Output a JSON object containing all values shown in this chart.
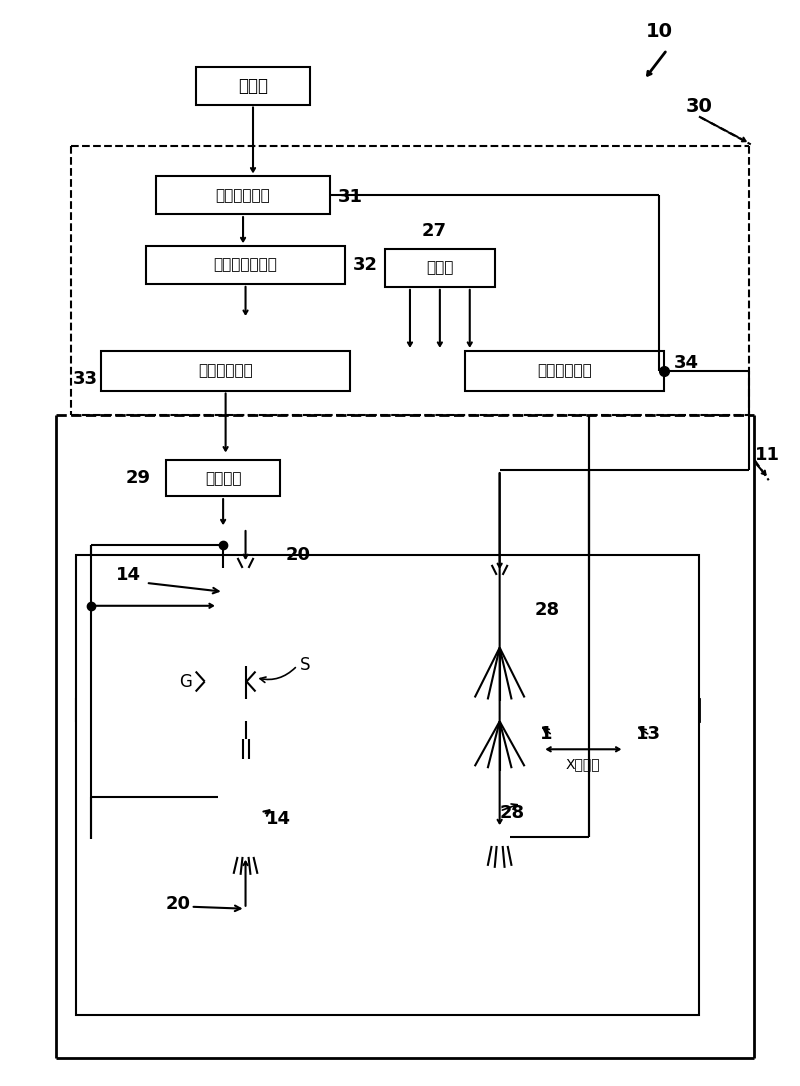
{
  "bg_color": "#ffffff",
  "lc": "#000000",
  "fig_w": 8.0,
  "fig_h": 10.86,
  "tap_water_label": "自来水",
  "soft_water_label": "软水生成单元",
  "alkaline_water_label": "碱性水生成单元",
  "compressor_label": "压缩机",
  "alkaline_press_label": "碱性水加压箱",
  "neutral_press_label": "中性水加压箱",
  "heating_label": "加热机构",
  "xaxis_label": "X轴方向"
}
